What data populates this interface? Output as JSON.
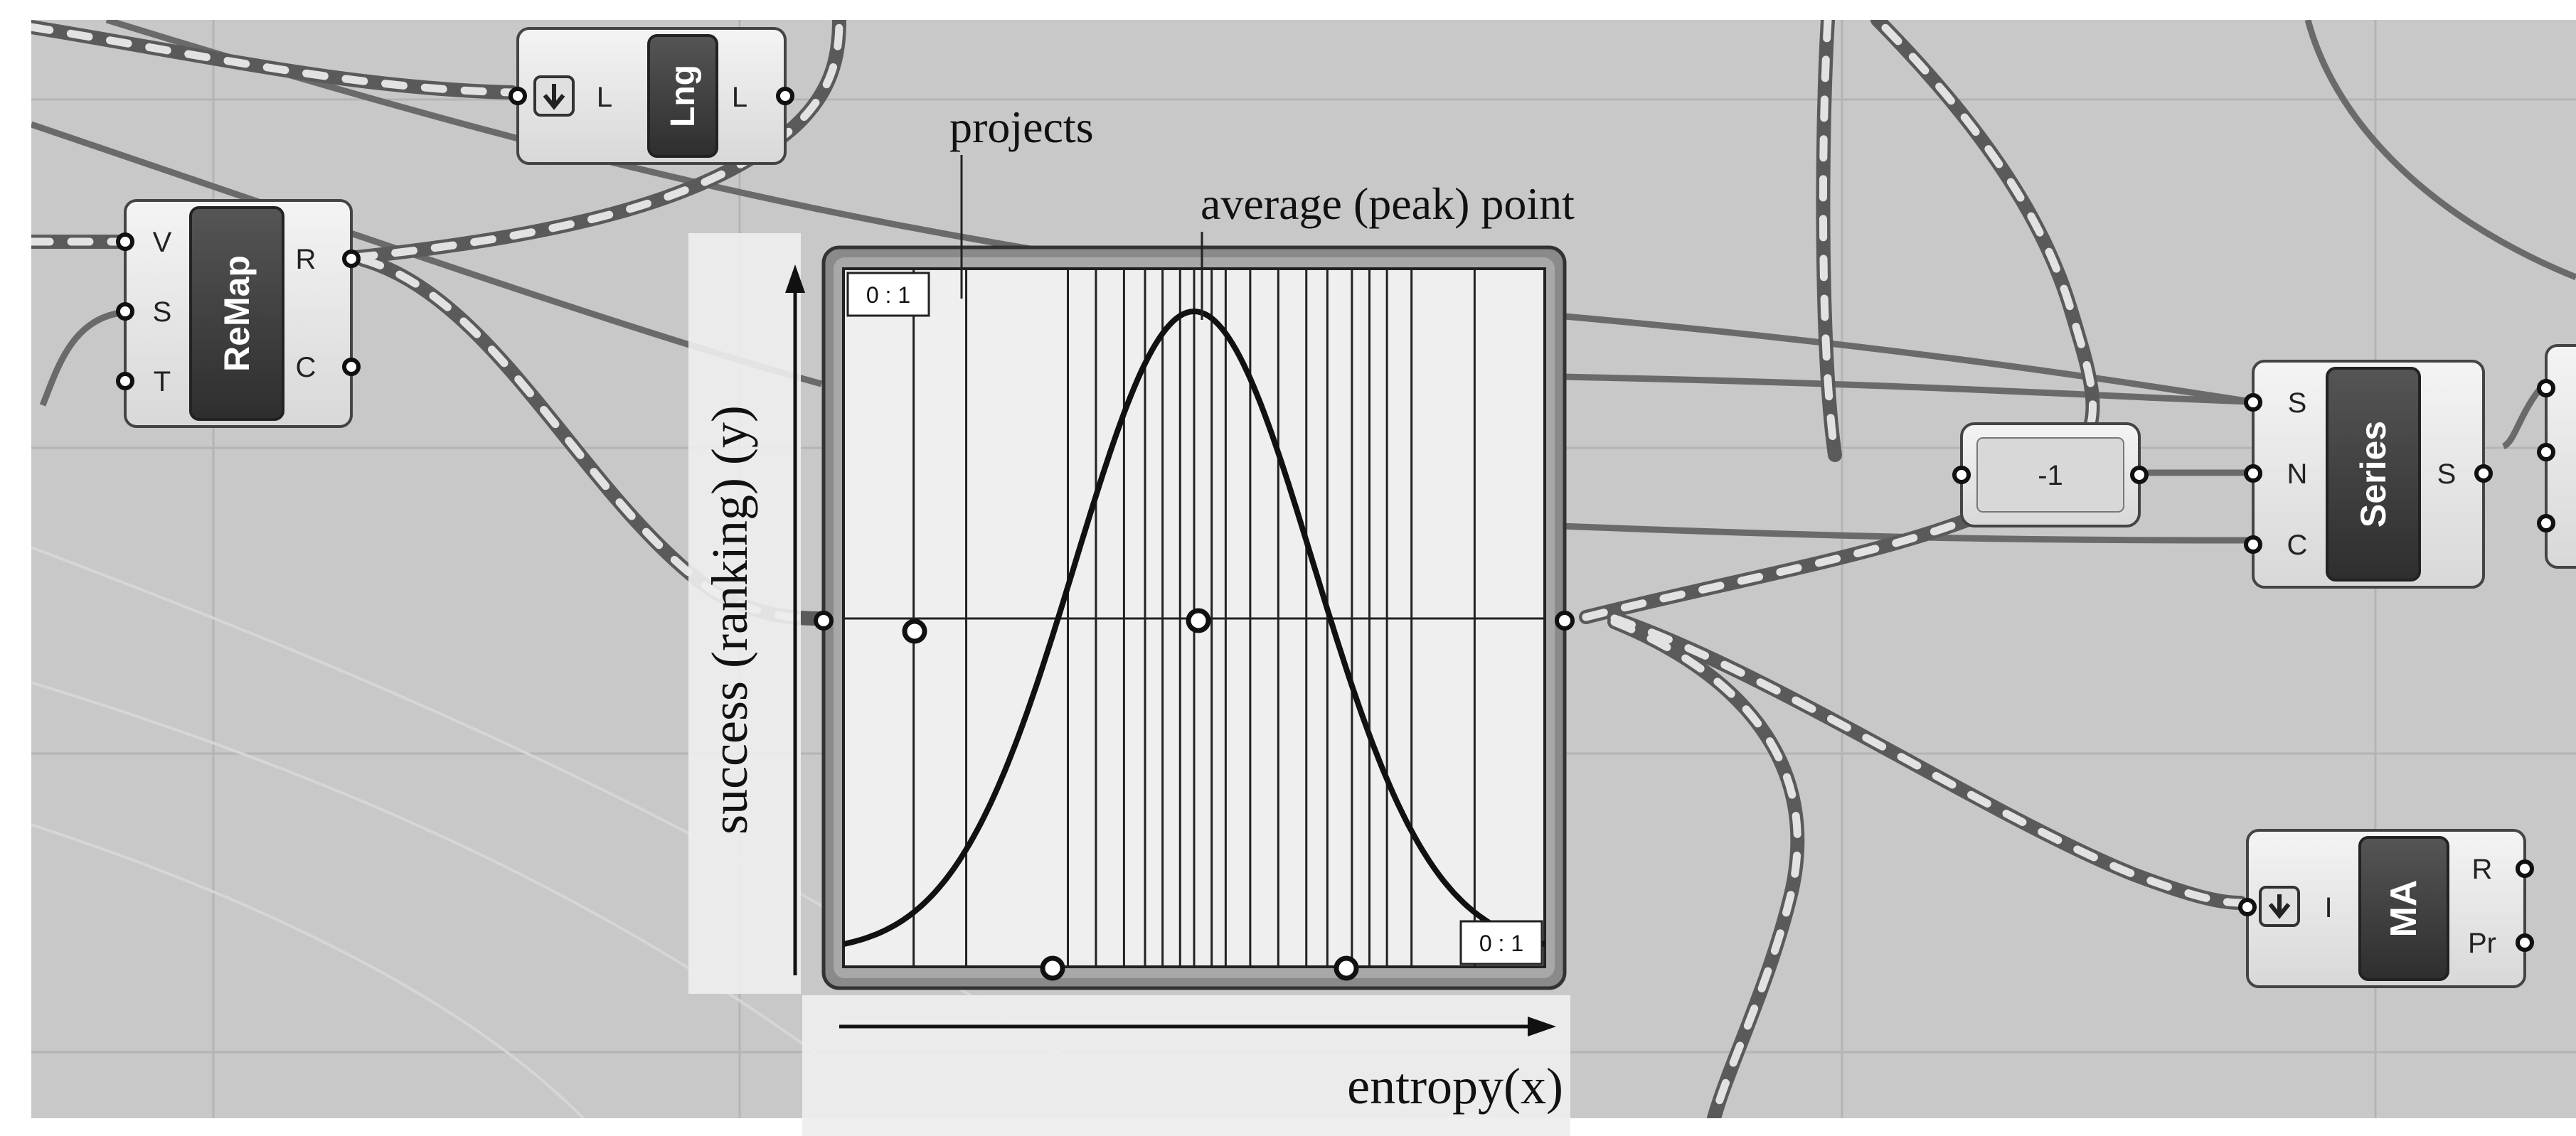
{
  "annotations": {
    "projects": "projects",
    "peak": "average (peak) point",
    "y_axis": "success (ranking) (y)",
    "x_axis": "entropy(x)"
  },
  "graph": {
    "range_top": "0 : 1",
    "range_bottom": "0 : 1",
    "project_lines": [
      0.1,
      0.175,
      0.32,
      0.36,
      0.4,
      0.43,
      0.455,
      0.48,
      0.5,
      0.525,
      0.545,
      0.58,
      0.62,
      0.66,
      0.69,
      0.725,
      0.75,
      0.775,
      0.81,
      0.9
    ]
  },
  "components": {
    "remap": {
      "title": "ReMap",
      "inputs": [
        "V",
        "S",
        "T"
      ],
      "outputs": [
        "R",
        "C"
      ]
    },
    "lng": {
      "title": "Lng",
      "input": "L",
      "output": "L"
    },
    "series": {
      "title": "Series",
      "inputs": [
        "S",
        "N",
        "C"
      ],
      "outputs": [
        "S"
      ]
    },
    "ma": {
      "title": "MA",
      "input": "I",
      "outputs": [
        "R",
        "Pr"
      ]
    },
    "number_panel": {
      "value": "-1"
    }
  },
  "colors": {
    "canvas_bg": "#c8c8c8",
    "grid": "#b4b4b4",
    "component_body": "#ececec",
    "component_label": "#3a3a3a",
    "wire_solid": "#6a6a6a",
    "wire_dashed": "#6e6e6e",
    "curve": "#111111"
  }
}
